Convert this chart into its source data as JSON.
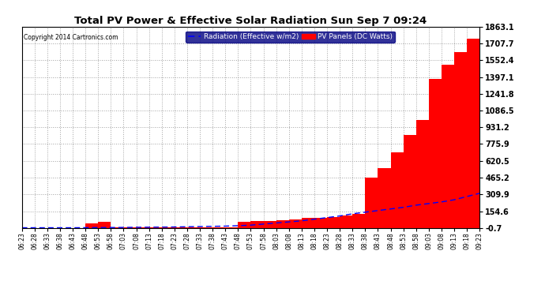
{
  "title": "Total PV Power & Effective Solar Radiation Sun Sep 7 09:24",
  "copyright": "Copyright 2014 Cartronics.com",
  "legend_radiation": "Radiation (Effective w/m2)",
  "legend_pv": "PV Panels (DC Watts)",
  "yticks": [
    -0.7,
    154.6,
    309.9,
    465.2,
    620.5,
    775.9,
    931.2,
    1086.5,
    1241.8,
    1397.1,
    1552.4,
    1707.7,
    1863.1
  ],
  "ymin": -0.7,
  "ymax": 1863.1,
  "bg_color": "#ffffff",
  "plot_bg_color": "#ffffff",
  "grid_color": "#999999",
  "red_color": "#ff0000",
  "blue_color": "#0000ff",
  "title_color": "#000000",
  "time_labels": [
    "06:23",
    "06:28",
    "06:33",
    "06:38",
    "06:43",
    "06:48",
    "06:53",
    "06:58",
    "07:03",
    "07:08",
    "07:13",
    "07:18",
    "07:23",
    "07:28",
    "07:33",
    "07:38",
    "07:43",
    "07:48",
    "07:53",
    "07:58",
    "08:03",
    "08:08",
    "08:13",
    "08:18",
    "08:23",
    "08:28",
    "08:33",
    "08:38",
    "08:43",
    "08:48",
    "08:53",
    "08:58",
    "09:03",
    "09:08",
    "09:13",
    "09:18",
    "09:23"
  ],
  "pv_values": [
    1,
    1,
    1,
    1,
    1,
    40,
    55,
    2,
    2,
    2,
    2,
    2,
    2,
    2,
    2,
    2,
    2,
    55,
    60,
    65,
    70,
    80,
    90,
    95,
    100,
    115,
    130,
    465,
    550,
    700,
    860,
    1000,
    1380,
    1510,
    1630,
    1750,
    1863
  ],
  "radiation_values": [
    1,
    1,
    1,
    1,
    1,
    2,
    3,
    3,
    4,
    5,
    6,
    7,
    8,
    10,
    12,
    14,
    16,
    20,
    25,
    35,
    45,
    55,
    65,
    80,
    95,
    110,
    130,
    145,
    160,
    175,
    190,
    210,
    225,
    240,
    260,
    290,
    320
  ]
}
